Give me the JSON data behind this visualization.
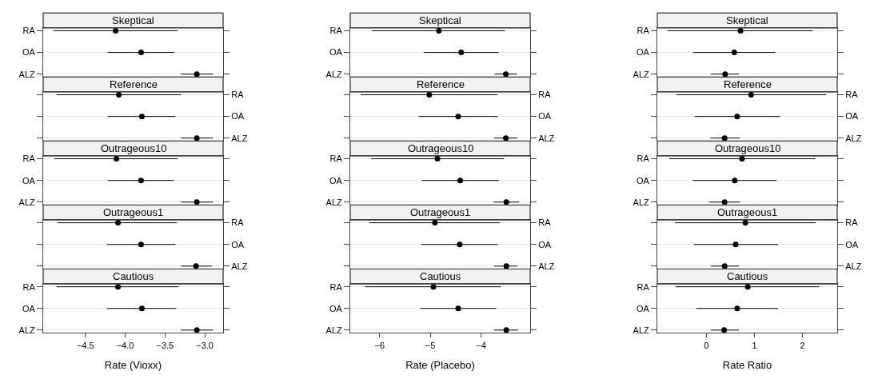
{
  "chart_data": [
    {
      "type": "scatter",
      "title": "Skeptical",
      "orientation": "horizontal",
      "categories": [
        "RA",
        "OA",
        "ALZ"
      ],
      "values": [
        -4.12,
        -3.8,
        -3.1
      ],
      "errors": [
        [
          -4.9,
          -3.34
        ],
        [
          -4.22,
          -3.38
        ],
        [
          -3.3,
          -2.9
        ]
      ],
      "color": "#000000",
      "marker": "circle",
      "grid": "y",
      "xlim": [
        -5.03,
        -2.77
      ],
      "tick_labels": "y"
    },
    {
      "type": "scatter",
      "title": "Skeptical",
      "orientation": "horizontal",
      "categories": [
        "RA",
        "OA",
        "ALZ"
      ],
      "values": [
        -4.83,
        -4.39,
        -3.51
      ],
      "errors": [
        [
          -6.15,
          -3.53
        ],
        [
          -5.13,
          -3.65
        ],
        [
          -3.73,
          -3.29
        ]
      ],
      "color": "#000000",
      "marker": "circle",
      "grid": "y",
      "xlim": [
        -6.58,
        -3.03
      ],
      "tick_labels": "y"
    },
    {
      "type": "scatter",
      "title": "Skeptical",
      "orientation": "horizontal",
      "categories": [
        "RA",
        "OA",
        "ALZ"
      ],
      "values": [
        0.71,
        0.58,
        0.39
      ],
      "errors": [
        [
          -0.81,
          2.21
        ],
        [
          -0.28,
          1.43
        ],
        [
          0.09,
          0.68
        ]
      ],
      "color": "#000000",
      "marker": "circle",
      "grid": "y",
      "xlim": [
        -1.02,
        2.72
      ],
      "tick_labels": "y"
    },
    {
      "type": "scatter",
      "title": "Reference",
      "orientation": "horizontal",
      "categories": [
        "RA",
        "OA",
        "ALZ"
      ],
      "values": [
        -4.08,
        -3.79,
        -3.1
      ],
      "errors": [
        [
          -4.86,
          -3.3
        ],
        [
          -4.22,
          -3.37
        ],
        [
          -3.3,
          -2.9
        ]
      ],
      "color": "#000000",
      "marker": "circle",
      "grid": "y",
      "xlim": [
        -5.03,
        -2.77
      ],
      "tick_labels": "y"
    },
    {
      "type": "scatter",
      "title": "Reference",
      "orientation": "horizontal",
      "categories": [
        "RA",
        "OA",
        "ALZ"
      ],
      "values": [
        -5.02,
        -4.45,
        -3.51
      ],
      "errors": [
        [
          -6.37,
          -3.67
        ],
        [
          -5.23,
          -3.67
        ],
        [
          -3.74,
          -3.28
        ]
      ],
      "color": "#000000",
      "marker": "circle",
      "grid": "y",
      "xlim": [
        -6.58,
        -3.03
      ],
      "tick_labels": "y"
    },
    {
      "type": "scatter",
      "title": "Reference",
      "orientation": "horizontal",
      "categories": [
        "RA",
        "OA",
        "ALZ"
      ],
      "values": [
        0.93,
        0.64,
        0.38
      ],
      "errors": [
        [
          -0.62,
          2.49
        ],
        [
          -0.24,
          1.53
        ],
        [
          0.08,
          0.69
        ]
      ],
      "color": "#000000",
      "marker": "circle",
      "grid": "y",
      "xlim": [
        -1.02,
        2.72
      ],
      "tick_labels": "y"
    },
    {
      "type": "scatter",
      "title": "Outrageous10",
      "orientation": "horizontal",
      "categories": [
        "RA",
        "OA",
        "ALZ"
      ],
      "values": [
        -4.11,
        -3.8,
        -3.1
      ],
      "errors": [
        [
          -4.89,
          -3.34
        ],
        [
          -4.22,
          -3.39
        ],
        [
          -3.3,
          -2.9
        ]
      ],
      "color": "#000000",
      "marker": "circle",
      "grid": "y",
      "xlim": [
        -5.03,
        -2.77
      ],
      "tick_labels": "y"
    },
    {
      "type": "scatter",
      "title": "Outrageous10",
      "orientation": "horizontal",
      "categories": [
        "RA",
        "OA",
        "ALZ"
      ],
      "values": [
        -4.86,
        -4.41,
        -3.5
      ],
      "errors": [
        [
          -6.17,
          -3.55
        ],
        [
          -5.17,
          -3.65
        ],
        [
          -3.75,
          -3.25
        ]
      ],
      "color": "#000000",
      "marker": "circle",
      "grid": "y",
      "xlim": [
        -6.58,
        -3.03
      ],
      "tick_labels": "y"
    },
    {
      "type": "scatter",
      "title": "Outrageous10",
      "orientation": "horizontal",
      "categories": [
        "RA",
        "OA",
        "ALZ"
      ],
      "values": [
        0.74,
        0.59,
        0.38
      ],
      "errors": [
        [
          -0.77,
          2.26
        ],
        [
          -0.28,
          1.46
        ],
        [
          0.06,
          0.7
        ]
      ],
      "color": "#000000",
      "marker": "circle",
      "grid": "y",
      "xlim": [
        -1.02,
        2.72
      ],
      "tick_labels": "y"
    },
    {
      "type": "scatter",
      "title": "Outrageous1",
      "orientation": "horizontal",
      "categories": [
        "RA",
        "OA",
        "ALZ"
      ],
      "values": [
        -4.09,
        -3.8,
        -3.11
      ],
      "errors": [
        [
          -4.85,
          -3.35
        ],
        [
          -4.23,
          -3.37
        ],
        [
          -3.3,
          -2.91
        ]
      ],
      "color": "#000000",
      "marker": "circle",
      "grid": "y",
      "xlim": [
        -5.03,
        -2.77
      ],
      "tick_labels": "y"
    },
    {
      "type": "scatter",
      "title": "Outrageous1",
      "orientation": "horizontal",
      "categories": [
        "RA",
        "OA",
        "ALZ"
      ],
      "values": [
        -4.91,
        -4.42,
        -3.5
      ],
      "errors": [
        [
          -6.2,
          -3.63
        ],
        [
          -5.18,
          -3.67
        ],
        [
          -3.74,
          -3.28
        ]
      ],
      "color": "#000000",
      "marker": "circle",
      "grid": "y",
      "xlim": [
        -6.58,
        -3.03
      ],
      "tick_labels": "y"
    },
    {
      "type": "scatter",
      "title": "Outrageous1",
      "orientation": "horizontal",
      "categories": [
        "RA",
        "OA",
        "ALZ"
      ],
      "values": [
        0.81,
        0.61,
        0.38
      ],
      "errors": [
        [
          -0.65,
          2.27
        ],
        [
          -0.26,
          1.49
        ],
        [
          0.09,
          0.68
        ]
      ],
      "color": "#000000",
      "marker": "circle",
      "grid": "y",
      "xlim": [
        -1.02,
        2.72
      ],
      "tick_labels": "y"
    },
    {
      "type": "scatter",
      "title": "Cautious",
      "orientation": "horizontal",
      "categories": [
        "RA",
        "OA",
        "ALZ"
      ],
      "values": [
        -4.09,
        -3.79,
        -3.1
      ],
      "errors": [
        [
          -4.86,
          -3.33
        ],
        [
          -4.23,
          -3.36
        ],
        [
          -3.3,
          -2.9
        ]
      ],
      "color": "#000000",
      "marker": "circle",
      "grid": "y",
      "xlim": [
        -5.03,
        -2.77
      ],
      "xticks": [
        {
          "value": -4.5,
          "label": "−4.5"
        },
        {
          "value": -4.0,
          "label": "−4.0"
        },
        {
          "value": -3.5,
          "label": "−3.5"
        },
        {
          "value": -3.0,
          "label": "−3.0"
        }
      ],
      "xlabel": "Rate (Vioxx)"
    },
    {
      "type": "scatter",
      "title": "Cautious",
      "orientation": "horizontal",
      "categories": [
        "RA",
        "OA",
        "ALZ"
      ],
      "values": [
        -4.94,
        -4.45,
        -3.5
      ],
      "errors": [
        [
          -6.29,
          -3.61
        ],
        [
          -5.2,
          -3.7
        ],
        [
          -3.74,
          -3.27
        ]
      ],
      "color": "#000000",
      "marker": "circle",
      "grid": "y",
      "xlim": [
        -6.58,
        -3.03
      ],
      "xticks": [
        {
          "value": -6,
          "label": "−6"
        },
        {
          "value": -5,
          "label": "−5"
        },
        {
          "value": -4,
          "label": "−4"
        }
      ],
      "xlabel": "Rate (Placebo)"
    },
    {
      "type": "scatter",
      "title": "Cautious",
      "orientation": "horizontal",
      "categories": [
        "RA",
        "OA",
        "ALZ"
      ],
      "values": [
        0.86,
        0.64,
        0.37
      ],
      "errors": [
        [
          -0.64,
          2.34
        ],
        [
          -0.21,
          1.49
        ],
        [
          0.09,
          0.68
        ]
      ],
      "color": "#000000",
      "marker": "circle",
      "grid": "y",
      "xlim": [
        -1.02,
        2.72
      ],
      "xticks": [
        0,
        1,
        2
      ],
      "xlabel": "Rate Ratio"
    }
  ]
}
